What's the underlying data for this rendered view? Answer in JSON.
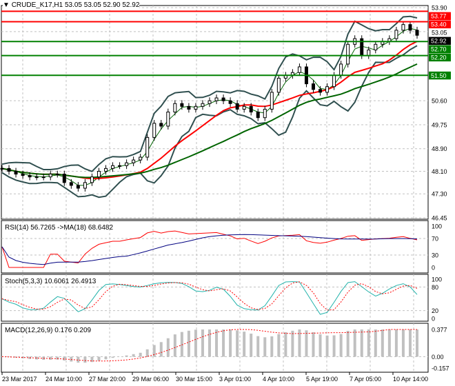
{
  "header": {
    "symbol": "CRUDE_K17,H1",
    "ohlc": "53.05 53.05 52.90 52.92"
  },
  "colors": {
    "resistance": "#ff0000",
    "support": "#008000",
    "bull": "#000000",
    "ma_fast": "#ff0000",
    "ma_slow": "#006400",
    "bands": "#2f4f4f",
    "rsi": "#ff0000",
    "rsi_ma": "#000080",
    "stoch_main": "#20b2aa",
    "stoch_signal": "#ff0000",
    "macd_hist": "#c0c0c0",
    "macd_signal": "#ff0000"
  },
  "chart_data": [
    {
      "type": "candlestick",
      "title": "CRUDE_K17,H1",
      "ylim": [
        46.45,
        53.9
      ],
      "closes": [
        48.2,
        48.1,
        48.0,
        47.95,
        47.9,
        47.9,
        47.9,
        48.0,
        48.0,
        47.7,
        47.6,
        47.5,
        47.7,
        47.9,
        48.1,
        48.2,
        48.3,
        48.3,
        48.4,
        48.5,
        48.6,
        49.3,
        49.8,
        49.7,
        50.2,
        50.5,
        50.4,
        50.3,
        50.4,
        50.5,
        50.6,
        50.7,
        50.6,
        50.5,
        50.3,
        50.4,
        50.2,
        50.0,
        50.3,
        50.9,
        51.4,
        51.5,
        51.6,
        51.8,
        51.2,
        51.0,
        50.9,
        51.1,
        51.5,
        51.9,
        52.6,
        52.8,
        52.2,
        52.4,
        52.6,
        52.7,
        52.8,
        53.1,
        53.3,
        53.1,
        52.92
      ],
      "price_ticks": [
        "53.90",
        "53.05",
        "50.60",
        "49.75",
        "48.90",
        "48.10",
        "47.30",
        "46.45"
      ],
      "current_price": "52.92",
      "levels": [
        {
          "value": "53.77",
          "kind": "resistance"
        },
        {
          "value": "53.40",
          "kind": "resistance"
        },
        {
          "value": "52.70",
          "kind": "support"
        },
        {
          "value": "52.20",
          "kind": "support"
        },
        {
          "value": "51.50",
          "kind": "support"
        }
      ],
      "x_ticks": [
        "23 Mar 2017",
        "24 Mar 10:00",
        "27 Mar 20:00",
        "29 Mar 06:00",
        "30 Mar 15:00",
        "3 Apr 01:00",
        "4 Apr 10:00",
        "5 Apr 19:00",
        "7 Apr 05:00",
        "10 Apr 14:00"
      ]
    },
    {
      "type": "line",
      "label": "RSI(14) 56.7265  ->MA(18) 68.6482",
      "ticks": [
        "100",
        "70",
        "30",
        "0"
      ],
      "ylim": [
        0,
        100
      ]
    },
    {
      "type": "line",
      "label": "Stoch(5,3,3) 10.6061 26.4913",
      "ticks": [
        "100",
        "80",
        "20",
        "0"
      ],
      "ylim": [
        0,
        100
      ]
    },
    {
      "type": "bar",
      "label": "MACD(12,26,9) 0.176 0.209",
      "ticks": [
        "0.377",
        "0.00",
        "-0.157"
      ],
      "ylim": [
        -0.157,
        0.377
      ]
    }
  ]
}
